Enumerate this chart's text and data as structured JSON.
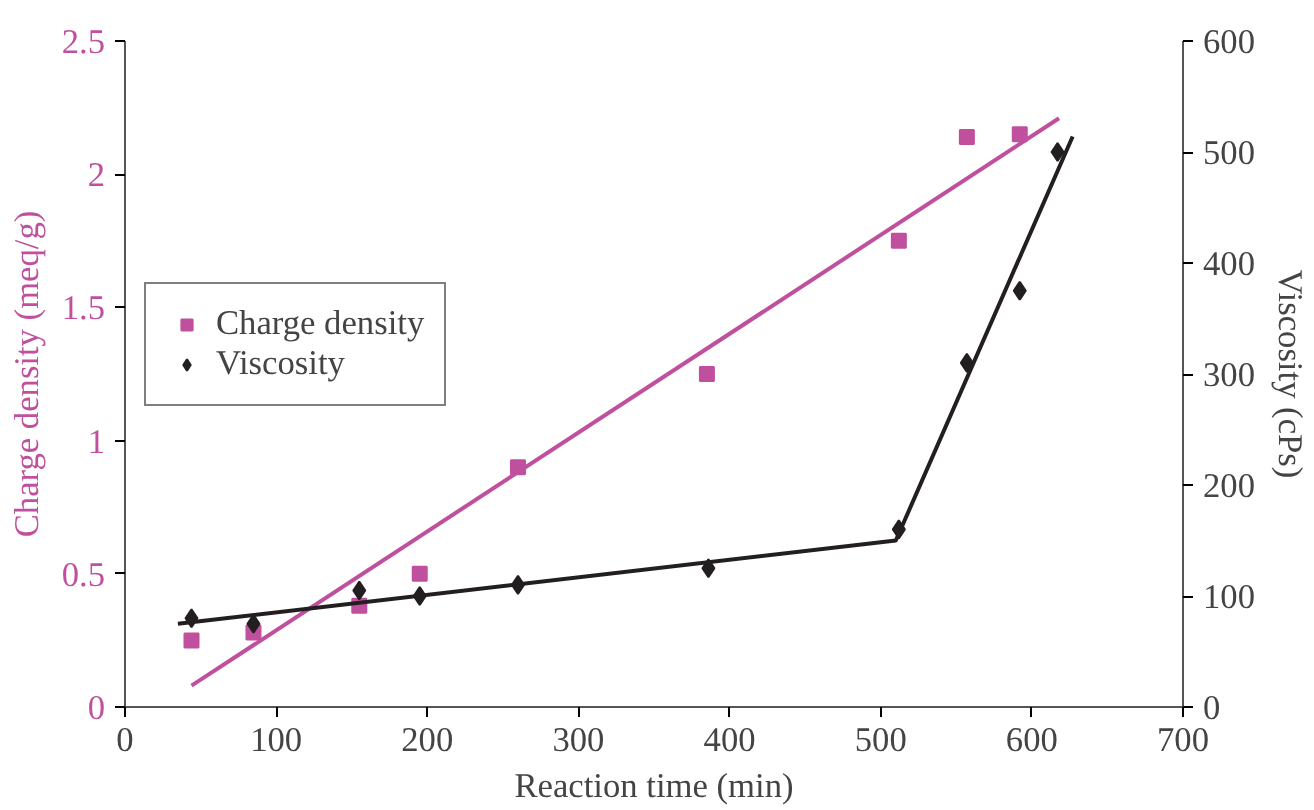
{
  "chart_data": {
    "type": "scatter",
    "xlabel": "Reaction time (min)",
    "ylabel": "Charge density (meq/g)",
    "y2label": "Viscosity (cPs)",
    "xlim": [
      0,
      700
    ],
    "xticks": [
      0,
      100,
      200,
      300,
      400,
      500,
      600,
      700
    ],
    "ylim": [
      0,
      2.5
    ],
    "yticks": [
      0,
      0.5,
      1,
      1.5,
      2,
      2.5
    ],
    "y2lim": [
      0,
      600
    ],
    "y2ticks": [
      0,
      100,
      200,
      300,
      400,
      500,
      600
    ],
    "grid": false,
    "legend": "top left",
    "series": [
      {
        "name": "Charge density",
        "marker": "square",
        "color": "#c0509e",
        "x": [
          44,
          85,
          155,
          195,
          260,
          385,
          512,
          557,
          592
        ],
        "values": [
          0.25,
          0.28,
          0.38,
          0.5,
          0.9,
          1.25,
          1.75,
          2.14,
          2.15
        ]
      },
      {
        "name": "Viscosity",
        "marker": "diamond",
        "axis": "y2",
        "color": "#231f20",
        "x": [
          44,
          85,
          155,
          195,
          260,
          386,
          512,
          557,
          592,
          617
        ],
        "values": [
          80,
          75,
          105,
          100,
          110,
          125,
          160,
          310,
          375,
          500
        ]
      },
      {
        "type": "line",
        "color": "#c0509e",
        "x": [
          44,
          618
        ],
        "values": [
          0.08,
          2.21
        ]
      },
      {
        "type": "line",
        "axis": "y2",
        "color": "#231f20",
        "x": [
          35,
          510,
          627
        ],
        "values": [
          75,
          150,
          514
        ]
      }
    ]
  }
}
